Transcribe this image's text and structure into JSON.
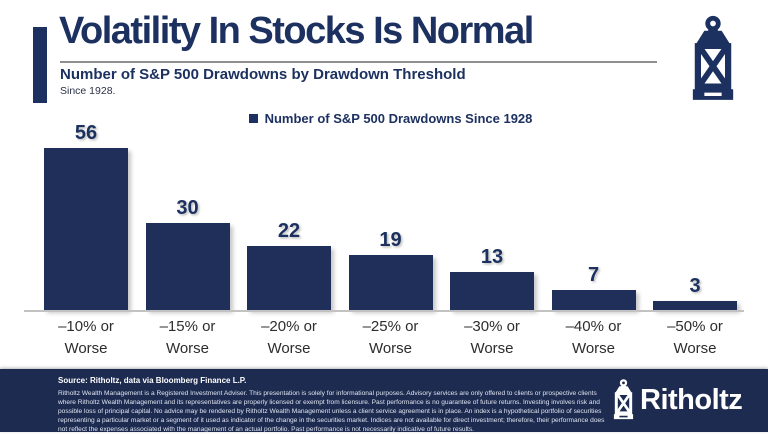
{
  "header": {
    "title": "Volatility In Stocks Is Normal",
    "subtitle": "Number of S&P 500 Drawdowns by Drawdown Threshold",
    "subnote": "Since 1928."
  },
  "chart_data": {
    "type": "bar",
    "title": "Number of S&P 500 Drawdowns by Drawdown Threshold",
    "subtitle": "Since 1928.",
    "categories": [
      "–10% or\nWorse",
      "–15% or\nWorse",
      "–20% or\nWorse",
      "–25% or\nWorse",
      "–30% or\nWorse",
      "–40% or\nWorse",
      "–50% or\nWorse"
    ],
    "values": [
      56,
      30,
      22,
      19,
      13,
      7,
      3
    ],
    "series": [
      {
        "name": "Number of S&P 500 Drawdowns Since 1928",
        "values": [
          56,
          30,
          22,
          19,
          13,
          7,
          3
        ]
      }
    ],
    "ylim": [
      0,
      60
    ],
    "grid": false,
    "legend_position": "top-center",
    "value_labels_shown": true,
    "bar_color": "#202f5a"
  },
  "footer": {
    "source": "Source: Ritholtz, data via Bloomberg Finance L.P.",
    "disclaimer": "Ritholtz Wealth Management is a Registered Investment Adviser. This presentation is solely for informational purposes. Advisory services are only offered to clients or prospective clients where Ritholtz Wealth Management and its representatives are properly licensed or exempt from licensure. Past performance is no guarantee of future returns. Investing involves risk and possible loss of principal capital. No advice may be rendered by Ritholtz Wealth Management unless a client service agreement is in place. An index is a hypothetical portfolio of securities representing a particular market or a segment of it used as indicator of the change in the securities market. Indices are not available for direct investment; therefore, their performance does not reflect the expenses associated with the management of an actual portfolio. Past performance is not necessarily indicative of future results.",
    "brand": "Ritholtz"
  },
  "colors": {
    "primary_navy": "#1d3160",
    "bar_navy": "#202f5a",
    "footer_navy": "#1d2b50",
    "underline_gray": "#8f8f8f",
    "axis_gray": "#c2c2c2",
    "label_gray": "#2d2d2d"
  }
}
